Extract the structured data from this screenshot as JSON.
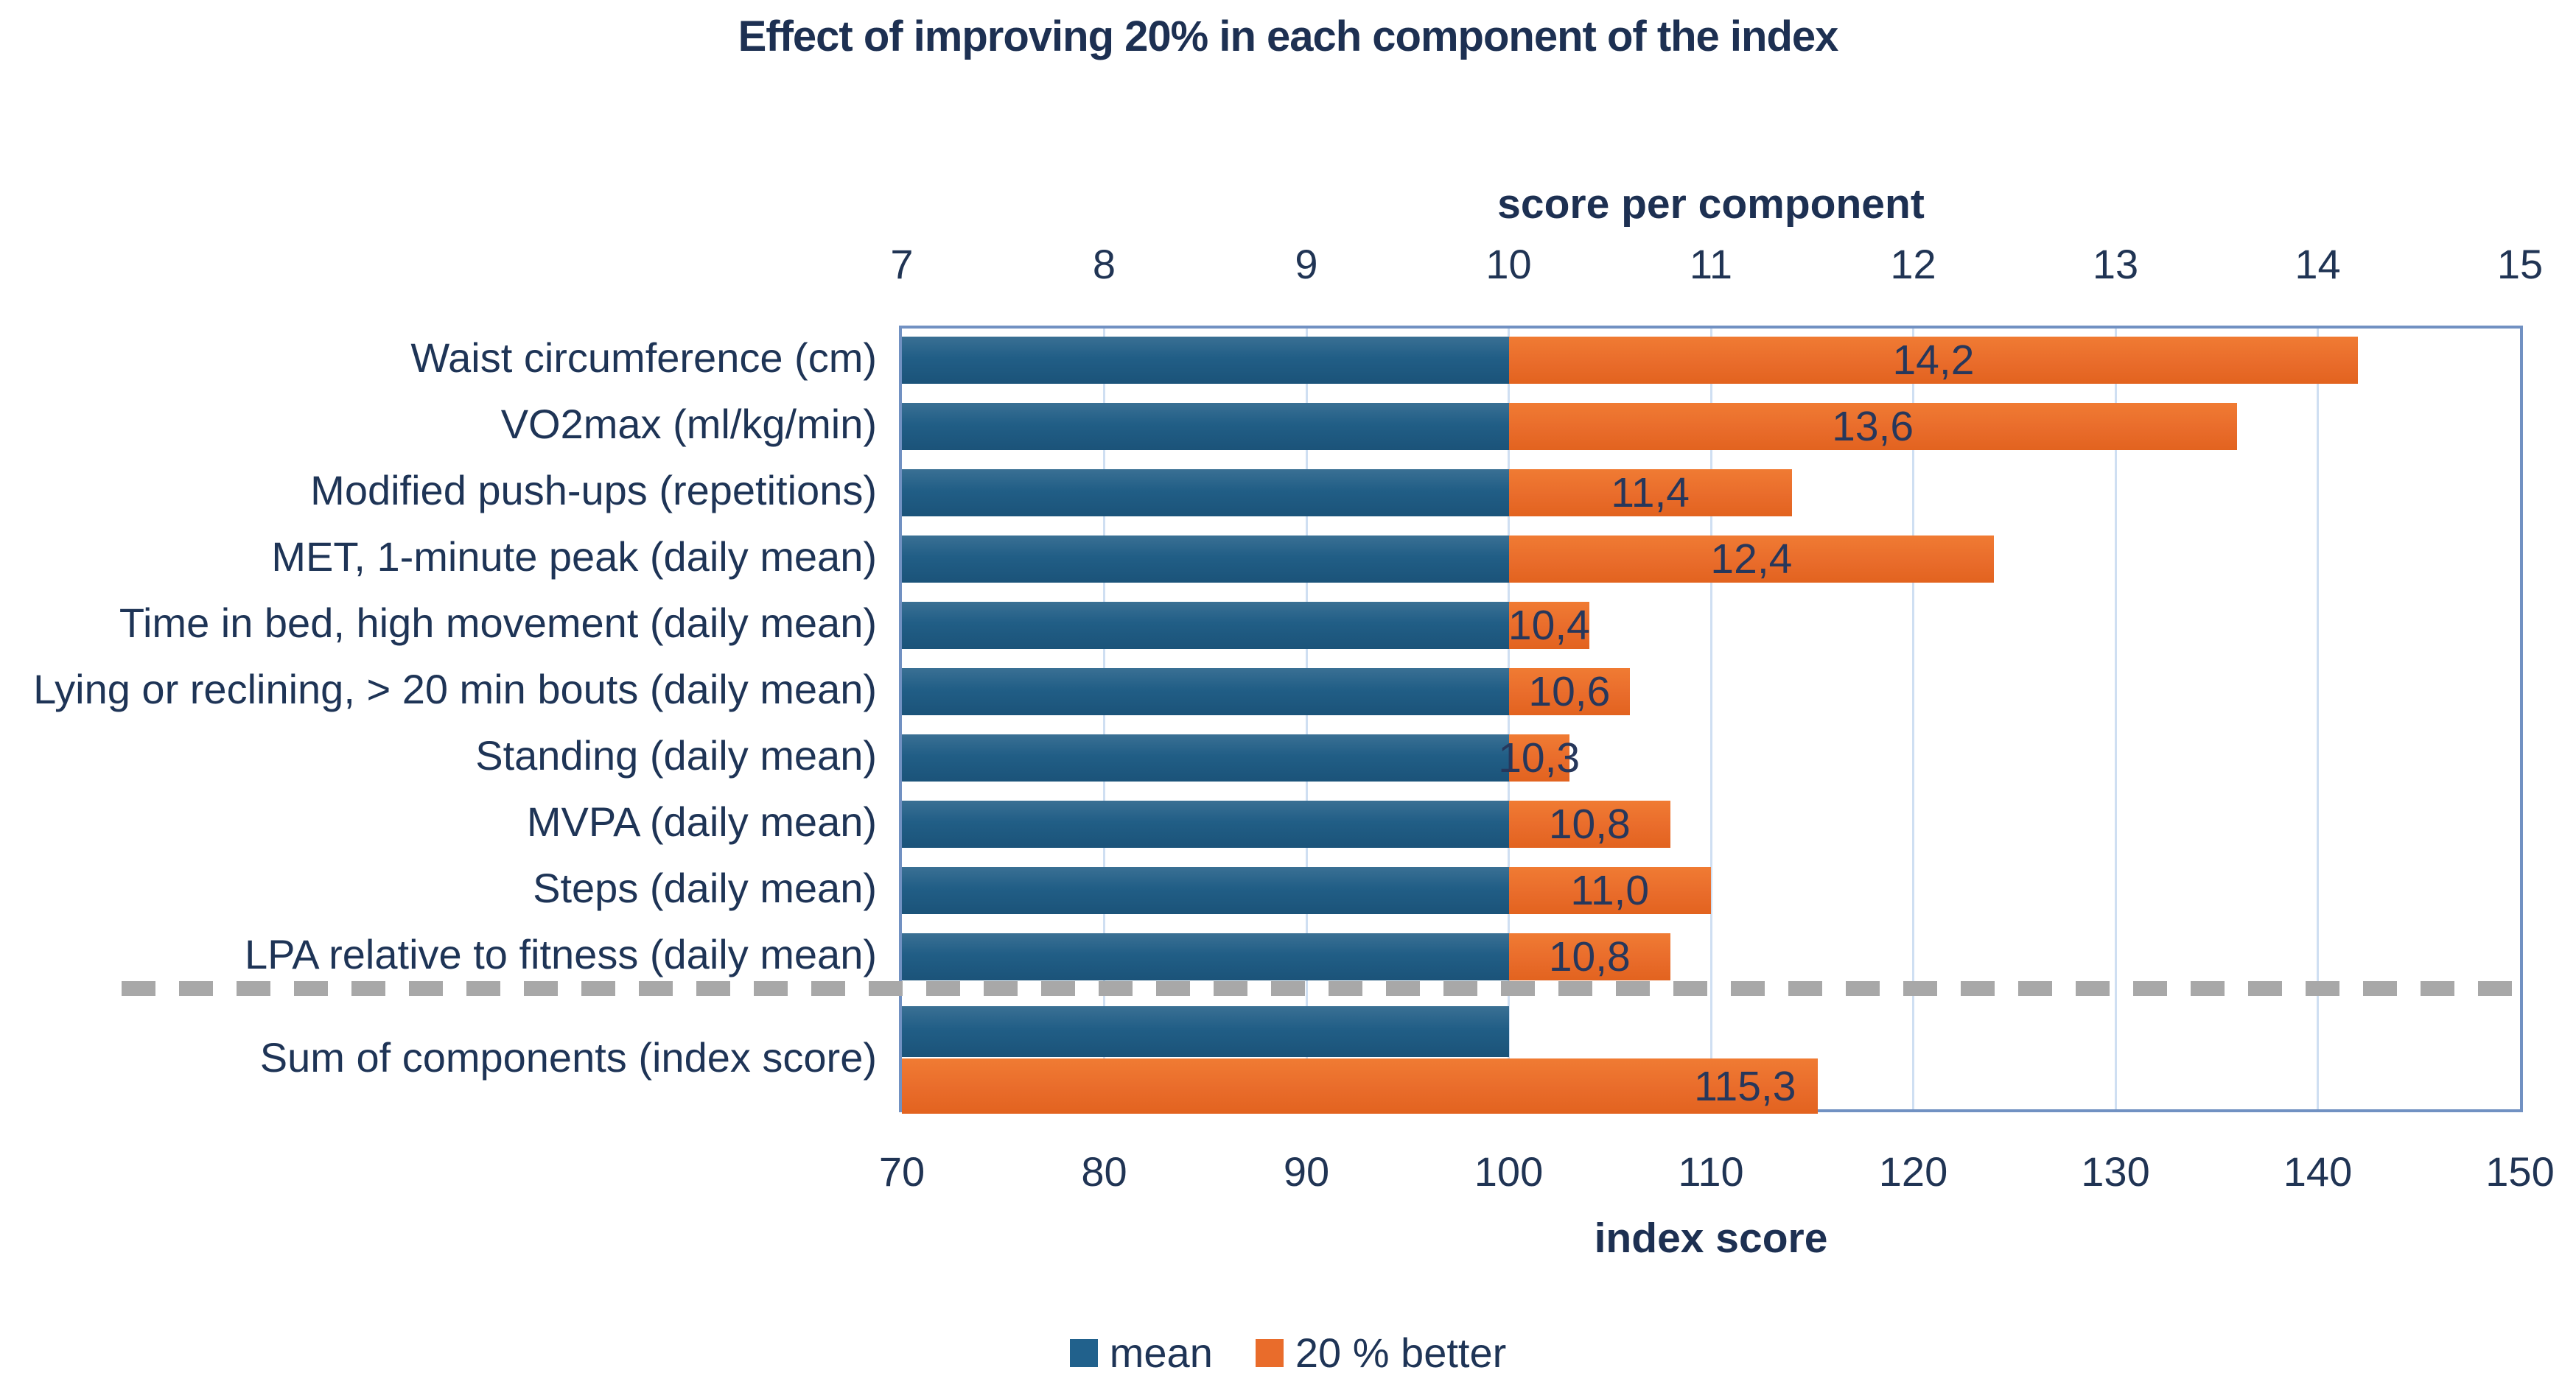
{
  "chart_data": {
    "type": "bar",
    "orientation": "horizontal",
    "title": "Effect of improving 20% in each component of the index",
    "top_axis": {
      "label": "score per component",
      "min": 7,
      "max": 15,
      "ticks": [
        "7",
        "8",
        "9",
        "10",
        "11",
        "12",
        "13",
        "14",
        "15"
      ]
    },
    "bottom_axis": {
      "label": "index score",
      "min": 70,
      "max": 150,
      "ticks": [
        "70",
        "80",
        "90",
        "100",
        "110",
        "120",
        "130",
        "140",
        "150"
      ]
    },
    "legend": {
      "position": "bottom-center",
      "items": [
        {
          "name": "mean",
          "color": "#21618c"
        },
        {
          "name": "20 % better",
          "color": "#e96c2b"
        }
      ]
    },
    "grid": "vertical-major",
    "categories": [
      {
        "label": "Waist circumference (cm)",
        "mean": 10,
        "better": 14.2,
        "better_label": "14,2"
      },
      {
        "label": "VO2max (ml/kg/min)",
        "mean": 10,
        "better": 13.6,
        "better_label": "13,6"
      },
      {
        "label": "Modified push-ups (repetitions)",
        "mean": 10,
        "better": 11.4,
        "better_label": "11,4"
      },
      {
        "label": "MET, 1-minute peak (daily mean)",
        "mean": 10,
        "better": 12.4,
        "better_label": "12,4"
      },
      {
        "label": "Time in bed, high movement (daily mean)",
        "mean": 10,
        "better": 10.4,
        "better_label": "10,4"
      },
      {
        "label": "Lying or reclining, > 20 min bouts (daily mean)",
        "mean": 10,
        "better": 10.6,
        "better_label": "10,6"
      },
      {
        "label": "Standing (daily mean)",
        "mean": 10,
        "better": 10.3,
        "better_label": "10,3"
      },
      {
        "label": "MVPA (daily mean)",
        "mean": 10,
        "better": 10.8,
        "better_label": "10,8"
      },
      {
        "label": "Steps (daily mean)",
        "mean": 10,
        "better": 11.0,
        "better_label": "11,0"
      },
      {
        "label": "LPA relative to fitness (daily mean)",
        "mean": 10,
        "better": 10.8,
        "better_label": "10,8"
      }
    ],
    "sum_row": {
      "label": "Sum of components (index score)",
      "mean": 100,
      "better": 115.3,
      "better_label": "115,3"
    },
    "colors": {
      "mean_bar": "#21618c",
      "better_bar": "#e96c2b",
      "gridline": "#cfdff2",
      "plot_border": "#7191c2",
      "separator_dash": "#a8a8a8",
      "text": "#1e3456"
    }
  }
}
